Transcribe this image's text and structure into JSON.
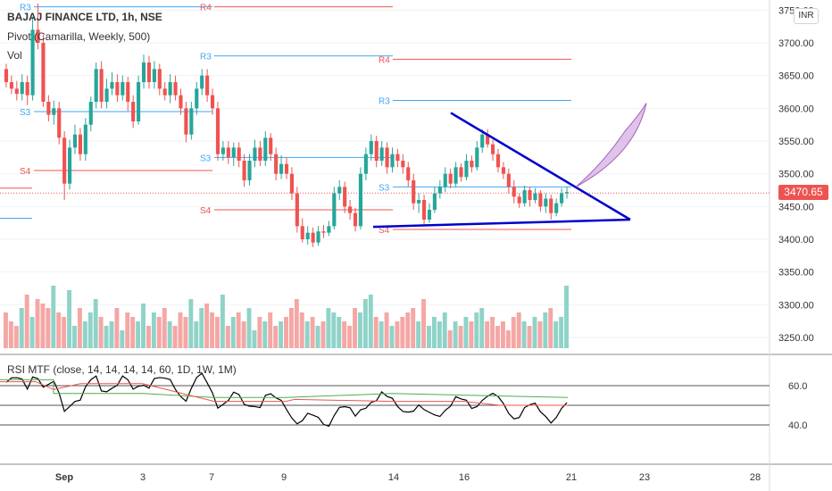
{
  "header": {
    "symbol": "BAJAJ FINANCE LTD, 1h, NSE",
    "pivot_label": "Pivot (Camarilla, Weekly, 500)",
    "vol_label": "Vol",
    "rsi_label": "RSI MTF (close, 14, 14, 14, 14, 60, 1D, 1W, 1M)",
    "currency": "INR",
    "last_price": "3470.65"
  },
  "colors": {
    "bull": "#26a69a",
    "bear": "#ef5350",
    "bull_vol": "#8fd3c8",
    "bear_vol": "#f4a7a5",
    "pivot_support": "#ef5350",
    "pivot_resist": "#42a5f5",
    "trendline": "#0000cc",
    "projection": "#c792d6",
    "rsi_main": "#000000",
    "rsi_d": "#ef5350",
    "rsi_w": "#4caf50"
  },
  "chart_data": {
    "type": "candlestick",
    "price_axis": {
      "ticks": [
        3750,
        3700,
        3650,
        3600,
        3550,
        3500,
        3450,
        3400,
        3350,
        3300,
        3250
      ],
      "tick_labels": [
        "3750.00",
        "3700.00",
        "3650.00",
        "3600.00",
        "3550.00",
        "3500.00",
        "3450.00",
        "3400.00",
        "3350.00",
        "3300.00",
        "3250.00"
      ]
    },
    "rsi_axis": {
      "ticks": [
        60,
        40
      ],
      "tick_labels": [
        "60.0",
        "40.0"
      ],
      "levels": [
        60,
        50,
        40
      ]
    },
    "time_axis": [
      "Sep",
      "3",
      "7",
      "9",
      "14",
      "16",
      "21",
      "23",
      "28"
    ],
    "last_price": 3470.65,
    "pivot_labels": [
      "R3",
      "R4",
      "S3",
      "S4"
    ],
    "candles": [
      [
        3660,
        3640,
        3668,
        3632
      ],
      [
        3640,
        3630,
        3650,
        3622
      ],
      [
        3630,
        3622,
        3642,
        3612
      ],
      [
        3622,
        3640,
        3652,
        3612
      ],
      [
        3640,
        3620,
        3650,
        3605
      ],
      [
        3620,
        3720,
        3740,
        3612
      ],
      [
        3720,
        3700,
        3760,
        3690
      ],
      [
        3700,
        3610,
        3712,
        3602
      ],
      [
        3610,
        3590,
        3620,
        3580
      ],
      [
        3590,
        3600,
        3612,
        3575
      ],
      [
        3600,
        3555,
        3610,
        3545
      ],
      [
        3555,
        3485,
        3565,
        3460
      ],
      [
        3485,
        3540,
        3552,
        3476
      ],
      [
        3540,
        3560,
        3575,
        3530
      ],
      [
        3560,
        3530,
        3570,
        3520
      ],
      [
        3530,
        3575,
        3585,
        3520
      ],
      [
        3575,
        3610,
        3618,
        3565
      ],
      [
        3610,
        3660,
        3670,
        3600
      ],
      [
        3660,
        3610,
        3672,
        3600
      ],
      [
        3610,
        3630,
        3645,
        3600
      ],
      [
        3630,
        3640,
        3655,
        3620
      ],
      [
        3640,
        3620,
        3652,
        3610
      ],
      [
        3620,
        3640,
        3650,
        3612
      ],
      [
        3640,
        3610,
        3648,
        3596
      ],
      [
        3610,
        3580,
        3620,
        3570
      ],
      [
        3580,
        3640,
        3650,
        3575
      ],
      [
        3640,
        3670,
        3682,
        3630
      ],
      [
        3670,
        3640,
        3680,
        3630
      ],
      [
        3640,
        3660,
        3672,
        3630
      ],
      [
        3660,
        3630,
        3668,
        3620
      ],
      [
        3630,
        3620,
        3640,
        3612
      ],
      [
        3620,
        3640,
        3652,
        3608
      ],
      [
        3640,
        3620,
        3650,
        3612
      ],
      [
        3620,
        3600,
        3630,
        3590
      ],
      [
        3600,
        3560,
        3610,
        3548
      ],
      [
        3560,
        3600,
        3610,
        3552
      ],
      [
        3600,
        3630,
        3640,
        3590
      ],
      [
        3630,
        3650,
        3660,
        3620
      ],
      [
        3650,
        3620,
        3660,
        3610
      ],
      [
        3620,
        3600,
        3630,
        3590
      ],
      [
        3600,
        3530,
        3610,
        3520
      ],
      [
        3530,
        3540,
        3550,
        3520
      ],
      [
        3540,
        3525,
        3550,
        3515
      ],
      [
        3525,
        3540,
        3548,
        3512
      ],
      [
        3540,
        3520,
        3548,
        3510
      ],
      [
        3520,
        3490,
        3530,
        3480
      ],
      [
        3490,
        3520,
        3530,
        3482
      ],
      [
        3520,
        3540,
        3552,
        3510
      ],
      [
        3540,
        3520,
        3550,
        3512
      ],
      [
        3520,
        3555,
        3565,
        3512
      ],
      [
        3555,
        3530,
        3562,
        3520
      ],
      [
        3530,
        3500,
        3540,
        3490
      ],
      [
        3500,
        3515,
        3528,
        3492
      ],
      [
        3515,
        3500,
        3525,
        3492
      ],
      [
        3500,
        3470,
        3510,
        3460
      ],
      [
        3470,
        3420,
        3480,
        3410
      ],
      [
        3420,
        3400,
        3432,
        3395
      ],
      [
        3400,
        3410,
        3420,
        3392
      ],
      [
        3410,
        3395,
        3418,
        3388
      ],
      [
        3395,
        3412,
        3420,
        3390
      ],
      [
        3412,
        3410,
        3422,
        3402
      ],
      [
        3410,
        3420,
        3428,
        3405
      ],
      [
        3420,
        3470,
        3480,
        3415
      ],
      [
        3470,
        3480,
        3490,
        3460
      ],
      [
        3480,
        3450,
        3488,
        3440
      ],
      [
        3450,
        3440,
        3460,
        3430
      ],
      [
        3440,
        3420,
        3448,
        3412
      ],
      [
        3420,
        3500,
        3510,
        3415
      ],
      [
        3500,
        3530,
        3540,
        3490
      ],
      [
        3530,
        3550,
        3560,
        3520
      ],
      [
        3550,
        3520,
        3558,
        3510
      ],
      [
        3520,
        3540,
        3550,
        3512
      ],
      [
        3540,
        3510,
        3548,
        3500
      ],
      [
        3510,
        3530,
        3540,
        3502
      ],
      [
        3530,
        3520,
        3538,
        3510
      ],
      [
        3520,
        3510,
        3530,
        3500
      ],
      [
        3510,
        3490,
        3518,
        3480
      ],
      [
        3490,
        3455,
        3500,
        3445
      ],
      [
        3455,
        3460,
        3470,
        3440
      ],
      [
        3460,
        3430,
        3468,
        3420
      ],
      [
        3430,
        3445,
        3455,
        3425
      ],
      [
        3445,
        3470,
        3480,
        3440
      ],
      [
        3470,
        3480,
        3490,
        3462
      ],
      [
        3480,
        3500,
        3510,
        3472
      ],
      [
        3500,
        3485,
        3508,
        3478
      ],
      [
        3485,
        3510,
        3518,
        3480
      ],
      [
        3510,
        3495,
        3516,
        3488
      ],
      [
        3495,
        3520,
        3530,
        3490
      ],
      [
        3520,
        3510,
        3528,
        3502
      ],
      [
        3510,
        3540,
        3550,
        3505
      ],
      [
        3540,
        3560,
        3568,
        3532
      ],
      [
        3560,
        3545,
        3568,
        3540
      ],
      [
        3545,
        3530,
        3552,
        3520
      ],
      [
        3530,
        3510,
        3538,
        3502
      ],
      [
        3510,
        3500,
        3518,
        3492
      ],
      [
        3500,
        3480,
        3508,
        3470
      ],
      [
        3480,
        3465,
        3490,
        3455
      ],
      [
        3465,
        3455,
        3470,
        3448
      ],
      [
        3455,
        3475,
        3482,
        3450
      ],
      [
        3475,
        3460,
        3480,
        3450
      ],
      [
        3460,
        3470,
        3478,
        3455
      ],
      [
        3470,
        3450,
        3475,
        3442
      ],
      [
        3450,
        3462,
        3470,
        3440
      ],
      [
        3462,
        3440,
        3468,
        3430
      ],
      [
        3440,
        3455,
        3462,
        3435
      ],
      [
        3455,
        3470,
        3478,
        3450
      ],
      [
        3470,
        3472,
        3480,
        3462
      ]
    ],
    "volume_scale_max": 100,
    "volumes": [
      40,
      30,
      25,
      45,
      60,
      35,
      55,
      50,
      45,
      70,
      40,
      35,
      65,
      25,
      45,
      30,
      40,
      55,
      35,
      25,
      30,
      45,
      20,
      40,
      35,
      30,
      50,
      25,
      40,
      35,
      45,
      30,
      25,
      40,
      35,
      55,
      30,
      45,
      50,
      40,
      35,
      60,
      25,
      35,
      40,
      30,
      45,
      20,
      35,
      30,
      40,
      25,
      30,
      35,
      45,
      55,
      40,
      30,
      35,
      25,
      30,
      45,
      40,
      35,
      30,
      25,
      45,
      40,
      55,
      60,
      35,
      30,
      40,
      25,
      30,
      35,
      40,
      45,
      30,
      55,
      25,
      35,
      30,
      40,
      20,
      30,
      25,
      35,
      30,
      40,
      45,
      30,
      35,
      25,
      30,
      20,
      35,
      40,
      30,
      25,
      35,
      30,
      40,
      45,
      30,
      35,
      70
    ]
  }
}
